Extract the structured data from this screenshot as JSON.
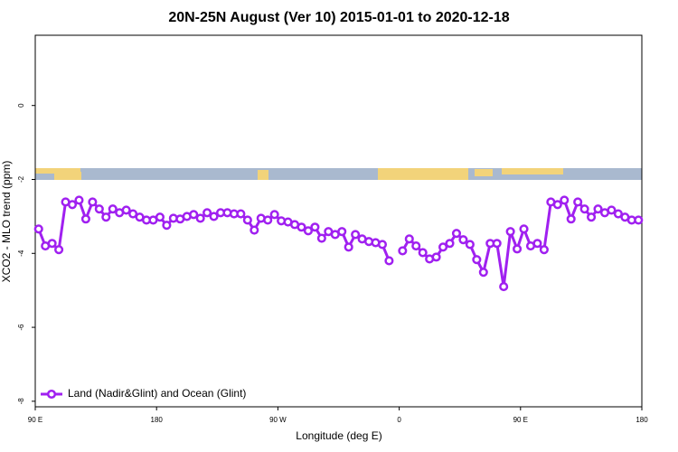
{
  "chart_data": {
    "type": "line",
    "title": "20N-25N August (Ver 10)   2015-01-01 to 2020-12-18",
    "xlabel": "Longitude (deg E)",
    "ylabel": "XCO2 - MLO trend (ppm)",
    "xlim": [
      90,
      540
    ],
    "xticks": [
      {
        "value": 90,
        "label": "90 E"
      },
      180,
      {
        "value": 270,
        "label": "90 W"
      },
      {
        "value": 360,
        "label": "0"
      },
      {
        "value": 450,
        "label": "90 E"
      },
      {
        "value": 540,
        "label": "180"
      }
    ],
    "ylim": [
      -8.15,
      1.9
    ],
    "yticks": [
      0,
      -2,
      -4,
      -6,
      -8
    ],
    "legend": "bottom-left",
    "x": [
      92.5,
      97.5,
      102.5,
      107.5,
      112.5,
      117.5,
      122.5,
      127.5,
      132.5,
      137.5,
      142.5,
      147.5,
      152.5,
      157.5,
      162.5,
      167.5,
      172.5,
      177.5,
      182.5,
      187.5,
      192.5,
      197.5,
      202.5,
      207.5,
      212.5,
      217.5,
      222.5,
      227.5,
      232.5,
      237.5,
      242.5,
      247.5,
      252.5,
      257.5,
      262.5,
      267.5,
      272.5,
      277.5,
      282.5,
      287.5,
      292.5,
      297.5,
      302.5,
      307.5,
      312.5,
      317.5,
      322.5,
      327.5,
      332.5,
      337.5,
      342.5,
      347.5,
      352.5,
      357.5,
      362.5,
      367.5,
      372.5,
      377.5,
      382.5,
      387.5,
      392.5,
      397.5,
      402.5,
      407.5,
      412.5,
      417.5,
      422.5,
      427.5,
      432.5,
      437.5,
      442.5,
      447.5,
      452.5,
      457.5,
      462.5,
      467.5,
      472.5,
      477.5,
      482.5,
      487.5,
      492.5,
      497.5,
      502.5,
      507.5,
      512.5,
      517.5,
      522.5,
      527.5,
      532.5,
      537.5
    ],
    "series": [
      {
        "name": "Land (Nadir&Glint) and Ocean (Glint)",
        "color": "#a020f0",
        "values": [
          -3.34,
          -3.8,
          -3.73,
          -3.9,
          -2.61,
          -2.68,
          -2.56,
          -3.07,
          -2.61,
          -2.8,
          -3.02,
          -2.8,
          -2.9,
          -2.83,
          -2.93,
          -3.02,
          -3.1,
          -3.1,
          -3.02,
          -3.24,
          -3.05,
          -3.07,
          -3.0,
          -2.95,
          -3.05,
          -2.9,
          -3.0,
          -2.9,
          -2.9,
          -2.93,
          -2.93,
          -3.1,
          -3.37,
          -3.05,
          -3.1,
          -2.95,
          -3.12,
          -3.15,
          -3.22,
          -3.29,
          -3.39,
          -3.29,
          -3.59,
          -3.41,
          -3.49,
          -3.41,
          -3.83,
          -3.49,
          -3.61,
          -3.68,
          -3.71,
          -3.76,
          -4.2,
          null,
          -3.93,
          -3.61,
          -3.8,
          -3.98,
          -4.15,
          -4.1,
          -3.83,
          -3.73,
          -3.46,
          -3.63,
          -3.76,
          -4.17,
          -4.51,
          -3.73,
          -3.73,
          -4.9,
          -3.41,
          -3.88,
          -3.34,
          -3.8,
          -3.73,
          -3.9,
          -2.61,
          -2.68,
          -2.56,
          -3.07,
          -2.61,
          -2.8,
          -3.02,
          -2.8,
          -2.9,
          -2.83,
          -2.93,
          -3.02,
          -3.1,
          -3.1
        ]
      }
    ]
  }
}
